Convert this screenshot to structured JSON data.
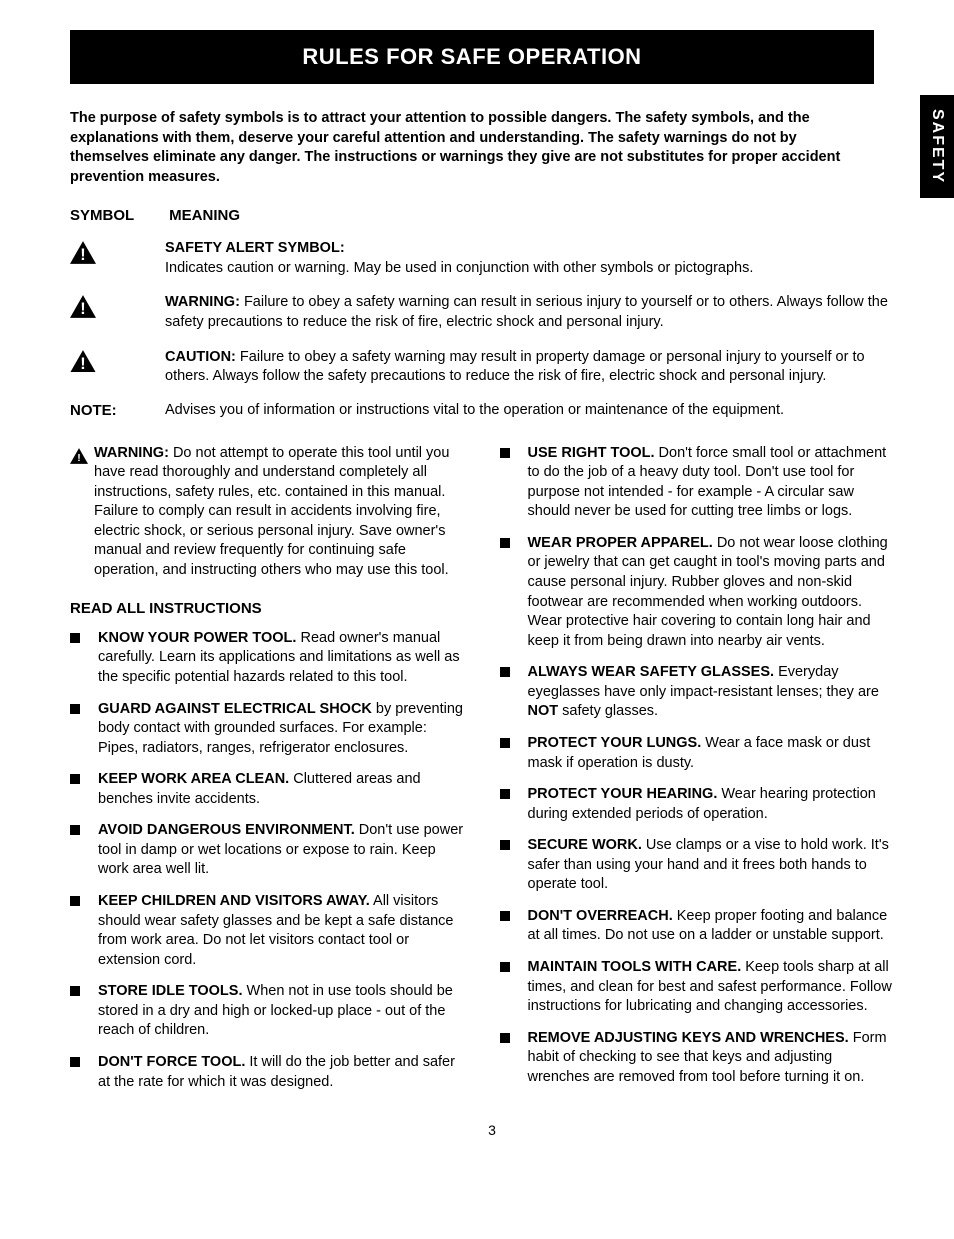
{
  "title": "RULES FOR SAFE OPERATION",
  "side_tab": "SAFETY",
  "intro": "The purpose of safety symbols is to attract your attention to possible dangers. The safety symbols, and the explanations with them, deserve your careful attention and understanding. The safety warnings do not by themselves eliminate any danger. The instructions or warnings they give are not substitutes for proper accident prevention measures.",
  "header_symbol": "SYMBOL",
  "header_meaning": "MEANING",
  "symbols": [
    {
      "lead": "SAFETY ALERT SYMBOL:",
      "text": "Indicates caution or warning. May be used in conjunction with other symbols or pictographs."
    },
    {
      "lead": "WARNING:",
      "text": " Failure to obey a safety warning can result in serious injury to yourself or to others. Always follow the safety precautions to reduce the risk of fire, electric shock and personal injury."
    },
    {
      "lead": "CAUTION:",
      "text": " Failure to obey a safety warning may result in property damage or personal injury to yourself or to others. Always follow the safety precautions to reduce the risk of fire, electric shock and personal injury."
    }
  ],
  "note_label": "NOTE:",
  "note_text": "Advises you of information or instructions vital to the operation or maintenance of the equipment.",
  "warning_block_lead": "WARNING:",
  "warning_block_text": " Do not attempt to operate this tool until you have read thoroughly and understand completely all instructions, safety rules, etc. contained in this manual. Failure to comply can result in accidents involving fire, electric shock, or serious personal injury. Save owner's manual and review frequently for continuing safe operation, and instructing others who may use this tool.",
  "read_all": "READ ALL INSTRUCTIONS",
  "left_items": [
    {
      "bold": "KNOW YOUR POWER TOOL.",
      "rest": " Read owner's manual carefully. Learn its applications and limitations as well as the specific potential hazards related to this tool."
    },
    {
      "bold": "GUARD AGAINST ELECTRICAL SHOCK",
      "rest": " by preventing body contact with grounded surfaces. For example: Pipes, radiators, ranges, refrigerator enclosures."
    },
    {
      "bold": "KEEP WORK AREA CLEAN.",
      "rest": " Cluttered areas and benches invite accidents."
    },
    {
      "bold": "AVOID DANGEROUS ENVIRONMENT.",
      "rest": " Don't use power tool in damp or wet locations or expose to rain. Keep work area well lit."
    },
    {
      "bold": "KEEP CHILDREN AND VISITORS AWAY.",
      "rest": " All visitors should wear safety glasses and be kept a safe distance from work area. Do not let visitors contact tool or extension cord."
    },
    {
      "bold": "STORE IDLE TOOLS.",
      "rest": " When not in use tools should be stored in a dry and high or locked-up place - out of the reach of children."
    },
    {
      "bold": "DON'T FORCE TOOL.",
      "rest": " It will do the job better and safer at the rate for which it was designed."
    }
  ],
  "right_items": [
    {
      "bold": "USE RIGHT TOOL.",
      "rest": " Don't force small tool or attachment to do the job of a heavy duty tool. Don't use tool for purpose not intended - for example - A circular saw should never be used for cutting tree limbs or logs."
    },
    {
      "bold": "WEAR PROPER APPAREL.",
      "rest": " Do not wear loose clothing or jewelry that can get caught in tool's moving parts and cause personal injury. Rubber gloves and non-skid footwear are recommended when working outdoors. Wear protective hair covering to contain long hair and keep it from being drawn into nearby air vents."
    },
    {
      "bold": "ALWAYS WEAR SAFETY GLASSES.",
      "rest_html": " Everyday eyeglasses have only impact-resistant lenses; they are <span class='b'>NOT</span> safety glasses."
    },
    {
      "bold": "PROTECT YOUR LUNGS.",
      "rest": " Wear a face mask or dust mask if operation is dusty."
    },
    {
      "bold": "PROTECT YOUR HEARING.",
      "rest": " Wear hearing protection during extended periods of operation."
    },
    {
      "bold": "SECURE WORK.",
      "rest": " Use clamps or a vise to hold work. It's safer than using your hand and it frees both hands to operate tool."
    },
    {
      "bold": "DON'T OVERREACH.",
      "rest": " Keep proper footing and balance at all times. Do not use on a ladder or unstable support."
    },
    {
      "bold": "MAINTAIN TOOLS WITH CARE.",
      "rest": " Keep tools sharp at all times, and clean for best and safest performance. Follow instructions for lubricating and changing accessories."
    },
    {
      "bold": "REMOVE ADJUSTING KEYS AND WRENCHES.",
      "rest": " Form habit of checking to see that keys and adjusting wrenches are removed from tool before turning it on."
    }
  ],
  "page_number": "3",
  "colors": {
    "bg": "#ffffff",
    "fg": "#000000"
  }
}
